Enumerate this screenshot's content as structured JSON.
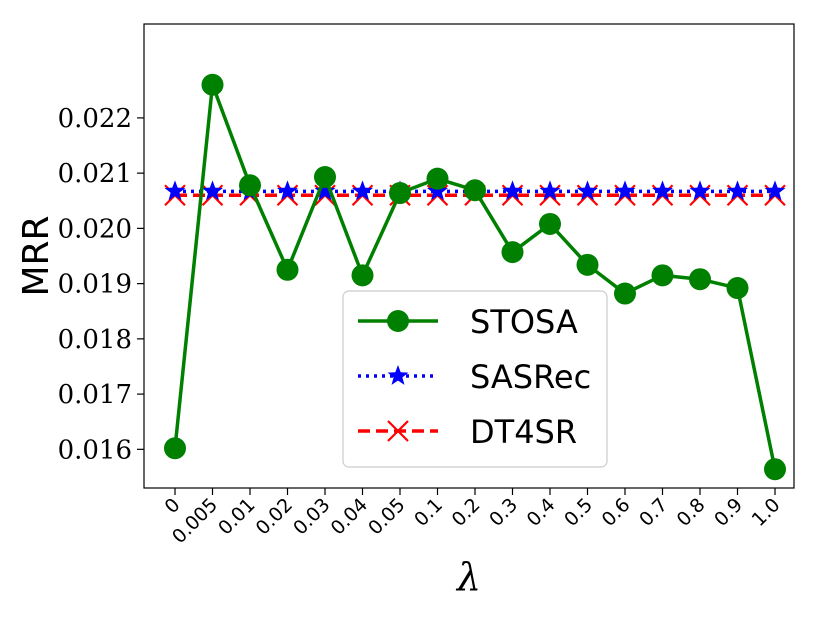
{
  "chart_data": {
    "type": "line",
    "title": "",
    "xlabel": "λ",
    "ylabel": "MRR",
    "categories": [
      "0",
      "0.005",
      "0.01",
      "0.02",
      "0.03",
      "0.04",
      "0.05",
      "0.1",
      "0.2",
      "0.3",
      "0.4",
      "0.5",
      "0.6",
      "0.7",
      "0.8",
      "0.9",
      "1.0"
    ],
    "ylim": [
      0.0153,
      0.0237
    ],
    "yticks": [
      0.016,
      0.017,
      0.018,
      0.019,
      0.02,
      0.021,
      0.022
    ],
    "ytick_labels": [
      "0.016",
      "0.017",
      "0.018",
      "0.019",
      "0.020",
      "0.021",
      "0.022"
    ],
    "legend_position": "lower-center",
    "grid": false,
    "series": [
      {
        "name": "STOSA",
        "color": "#008000",
        "linestyle": "solid",
        "marker": "circle",
        "values": [
          0.01602,
          0.0226,
          0.02078,
          0.01925,
          0.02093,
          0.01915,
          0.02064,
          0.0209,
          0.02069,
          0.01957,
          0.02008,
          0.01934,
          0.01882,
          0.01915,
          0.01908,
          0.01892,
          0.01564
        ]
      },
      {
        "name": "SASRec",
        "color": "#0000ff",
        "linestyle": "dotted",
        "marker": "star",
        "values": [
          0.02067,
          0.02067,
          0.02067,
          0.02067,
          0.02067,
          0.02067,
          0.02067,
          0.02067,
          0.02067,
          0.02067,
          0.02067,
          0.02067,
          0.02067,
          0.02067,
          0.02067,
          0.02067,
          0.02067
        ]
      },
      {
        "name": "DT4SR",
        "color": "#ff0000",
        "linestyle": "dashed",
        "marker": "x",
        "values": [
          0.0206,
          0.0206,
          0.0206,
          0.0206,
          0.0206,
          0.0206,
          0.0206,
          0.0206,
          0.0206,
          0.0206,
          0.0206,
          0.0206,
          0.0206,
          0.0206,
          0.0206,
          0.0206,
          0.0206
        ]
      }
    ]
  }
}
